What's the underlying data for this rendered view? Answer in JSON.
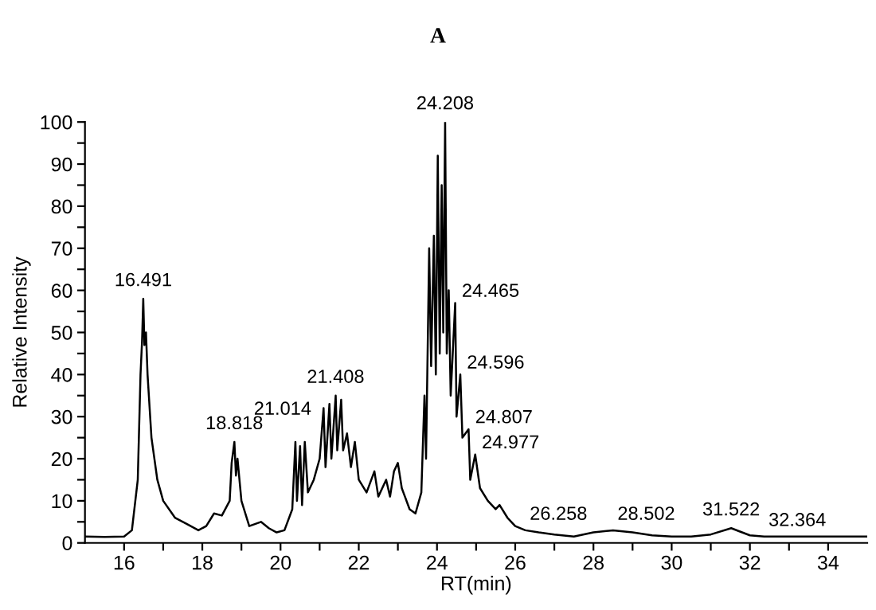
{
  "chart_data": {
    "type": "line",
    "title": "A",
    "xlabel": "RT(min)",
    "ylabel": "Relative Intensity",
    "x": [
      15.0,
      15.5,
      16.0,
      16.2,
      16.35,
      16.42,
      16.46,
      16.49,
      16.52,
      16.56,
      16.6,
      16.7,
      16.85,
      17.0,
      17.3,
      17.6,
      17.9,
      18.1,
      18.3,
      18.5,
      18.7,
      18.75,
      18.82,
      18.86,
      18.9,
      19.0,
      19.2,
      19.5,
      19.7,
      19.9,
      20.1,
      20.3,
      20.38,
      20.42,
      20.5,
      20.55,
      20.62,
      20.7,
      20.85,
      21.0,
      21.1,
      21.15,
      21.25,
      21.3,
      21.41,
      21.45,
      21.55,
      21.6,
      21.7,
      21.8,
      21.9,
      22.0,
      22.2,
      22.4,
      22.5,
      22.7,
      22.8,
      22.9,
      23.0,
      23.1,
      23.3,
      23.45,
      23.6,
      23.68,
      23.72,
      23.8,
      23.85,
      23.92,
      23.97,
      24.02,
      24.07,
      24.12,
      24.16,
      24.208,
      24.25,
      24.3,
      24.35,
      24.465,
      24.5,
      24.596,
      24.65,
      24.807,
      24.85,
      24.977,
      25.1,
      25.3,
      25.5,
      25.6,
      25.8,
      26.0,
      26.258,
      26.6,
      27.0,
      27.5,
      28.0,
      28.5,
      29.0,
      29.5,
      30.0,
      30.5,
      31.0,
      31.522,
      31.8,
      32.0,
      32.364,
      33.0,
      34.0,
      35.0
    ],
    "series": [
      {
        "color": "#000000",
        "values": [
          1.5,
          1.4,
          1.5,
          3,
          15,
          40,
          48,
          58,
          47,
          50,
          40,
          25,
          15,
          10,
          6,
          4.5,
          3,
          4,
          7,
          6.5,
          10,
          19,
          24,
          16,
          20,
          10,
          4,
          5,
          3.5,
          2.5,
          3,
          8,
          24,
          10,
          23,
          9,
          24,
          12,
          15,
          20,
          32,
          18,
          33,
          20,
          35,
          22,
          34,
          22,
          26,
          18,
          24,
          15,
          12,
          17,
          11,
          15,
          11,
          17,
          19,
          13,
          8,
          7,
          12,
          35,
          20,
          70,
          42,
          73,
          40,
          92,
          45,
          85,
          50,
          100,
          45,
          60,
          35,
          57,
          30,
          40,
          25,
          27,
          15,
          21,
          13,
          10,
          8,
          9,
          6,
          4,
          3,
          2.5,
          2,
          1.5,
          2.5,
          3,
          2.5,
          1.8,
          1.5,
          1.5,
          2,
          3.5,
          2.5,
          1.8,
          1.5,
          1.5,
          1.5,
          1.5
        ]
      }
    ],
    "xlim": [
      15,
      35
    ],
    "xticks": [
      16,
      {
        "value": 17,
        "label": null
      },
      18,
      {
        "value": 19,
        "label": null
      },
      20,
      {
        "value": 21,
        "label": null
      },
      22,
      {
        "value": 23,
        "label": null
      },
      24,
      {
        "value": 25,
        "label": null
      },
      26,
      {
        "value": 27,
        "label": null
      },
      28,
      {
        "value": 29,
        "label": null
      },
      30,
      {
        "value": 31,
        "label": null
      },
      32,
      {
        "value": 33,
        "label": null
      },
      34
    ],
    "ylim": [
      0,
      100
    ],
    "yticks": [
      0,
      {
        "value": 5,
        "label": null
      },
      10,
      {
        "value": 15,
        "label": null
      },
      20,
      {
        "value": 25,
        "label": null
      },
      30,
      {
        "value": 35,
        "label": null
      },
      40,
      {
        "value": 45,
        "label": null
      },
      50,
      {
        "value": 55,
        "label": null
      },
      60,
      {
        "value": 65,
        "label": null
      },
      70,
      {
        "value": 75,
        "label": null
      },
      80,
      {
        "value": 85,
        "label": null
      },
      90,
      {
        "value": 95,
        "label": null
      },
      100
    ],
    "annotations": [
      {
        "text": "16.491",
        "x": 16.491,
        "y": 58
      },
      {
        "text": "18.818",
        "x": 18.818,
        "y": 24
      },
      {
        "text": "21.014",
        "x": 21.014,
        "y": 29
      },
      {
        "text": "21.408",
        "x": 21.408,
        "y": 35
      },
      {
        "text": "24.208",
        "x": 24.208,
        "y": 100
      },
      {
        "text": "24.465",
        "x": 24.465,
        "y": 57
      },
      {
        "text": "24.596",
        "x": 24.596,
        "y": 40
      },
      {
        "text": "24.807",
        "x": 24.807,
        "y": 27
      },
      {
        "text": "24.977",
        "x": 24.977,
        "y": 21
      },
      {
        "text": "26.258",
        "x": 26.258,
        "y": 3
      },
      {
        "text": "28.502",
        "x": 28.502,
        "y": 3
      },
      {
        "text": "31.522",
        "x": 31.522,
        "y": 3.5
      },
      {
        "text": "32.364",
        "x": 32.364,
        "y": 1.5
      }
    ]
  }
}
